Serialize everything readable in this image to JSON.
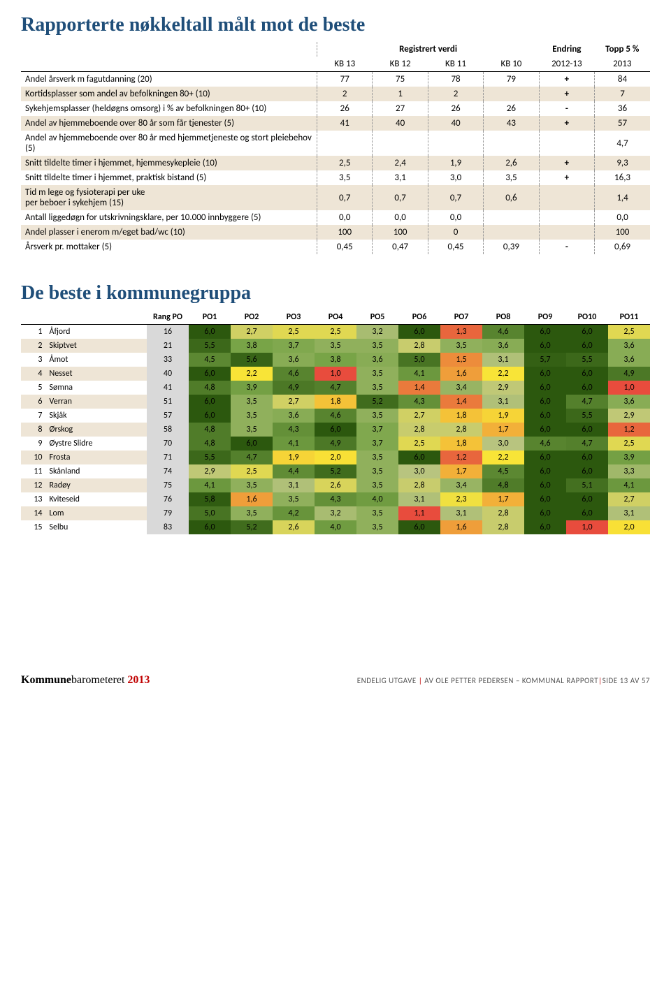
{
  "title1": "Rapporterte nøkkeltall målt mot de beste",
  "title2": "De beste i kommunegruppa",
  "table1": {
    "header_group_registrert": "Registrert verdi",
    "header_endring": "Endring",
    "header_topp": "Topp 5 %",
    "header_kb13": "KB 13",
    "header_kb12": "KB 12",
    "header_kb11": "KB 11",
    "header_kb10": "KB 10",
    "header_2012_13": "2012-13",
    "header_2013": "2013",
    "rows": [
      {
        "label": "Andel årsverk m fagutdanning (20)",
        "kb13": "77",
        "kb12": "75",
        "kb11": "78",
        "kb10": "79",
        "e": "+",
        "t": "84"
      },
      {
        "label": "Kortidsplasser som andel av befolkningen 80+ (10)",
        "kb13": "2",
        "kb12": "1",
        "kb11": "2",
        "kb10": "",
        "e": "+",
        "t": "7"
      },
      {
        "label": "Sykehjemsplasser (heldøgns omsorg) i % av befolkningen 80+ (10)",
        "kb13": "26",
        "kb12": "27",
        "kb11": "26",
        "kb10": "26",
        "e": "-",
        "t": "36"
      },
      {
        "label": "Andel av hjemmeboende over 80 år som får tjenester (5)",
        "kb13": "41",
        "kb12": "40",
        "kb11": "40",
        "kb10": "43",
        "e": "+",
        "t": "57"
      },
      {
        "label": "Andel av hjemmeboende over 80 år med hjemmetjeneste og stort pleiebehov (5)",
        "kb13": "",
        "kb12": "",
        "kb11": "",
        "kb10": "",
        "e": "",
        "t": "4,7"
      },
      {
        "label": "Snitt tildelte timer i hjemmet, hjemmesykepleie (10)",
        "kb13": "2,5",
        "kb12": "2,4",
        "kb11": "1,9",
        "kb10": "2,6",
        "e": "+",
        "t": "9,3"
      },
      {
        "label": "Snitt tildelte timer i hjemmet, praktisk bistand (5)",
        "kb13": "3,5",
        "kb12": "3,1",
        "kb11": "3,0",
        "kb10": "3,5",
        "e": "+",
        "t": "16,3"
      },
      {
        "label": "Tid m lege og fysioterapi per uke\nper beboer i sykehjem (15)",
        "kb13": "0,7",
        "kb12": "0,7",
        "kb11": "0,7",
        "kb10": "0,6",
        "e": "",
        "t": "1,4"
      },
      {
        "label": "Antall liggedøgn for utskrivningsklare, per 10.000 innbyggere (5)",
        "kb13": "0,0",
        "kb12": "0,0",
        "kb11": "0,0",
        "kb10": "",
        "e": "",
        "t": "0,0"
      },
      {
        "label": "Andel plasser i enerom m/eget bad/wc (10)",
        "kb13": "100",
        "kb12": "100",
        "kb11": "0",
        "kb10": "",
        "e": "",
        "t": "100"
      },
      {
        "label": "Årsverk pr. mottaker (5)",
        "kb13": "0,45",
        "kb12": "0,47",
        "kb11": "0,45",
        "kb10": "0,39",
        "e": "-",
        "t": "0,69"
      }
    ]
  },
  "table2": {
    "header_rang": "Rang PO",
    "po_headers": [
      "PO1",
      "PO2",
      "PO3",
      "PO4",
      "PO5",
      "PO6",
      "PO7",
      "PO8",
      "PO9",
      "PO10",
      "PO11"
    ],
    "color_scale": {
      "1.0": "#e84c3d",
      "1.1": "#e84c3d",
      "1.2": "#e8663d",
      "1.3": "#e8663d",
      "1.4": "#ea7a3c",
      "1.5": "#ed8c3b",
      "1.6": "#ef9e3a",
      "1.7": "#f2b039",
      "1.8": "#f4c238",
      "1.9": "#f6d437",
      "2.0": "#f8e036",
      "2.2": "#f8e437",
      "2.3": "#f0e040",
      "2.4": "#e8dc49",
      "2.5": "#e0d852",
      "2.6": "#d8d45b",
      "2.7": "#d0d064",
      "2.8": "#c8cc6d",
      "2.9": "#c0c876",
      "3.0": "#b8c47f",
      "3.1": "#b0c078",
      "3.2": "#a8bc71",
      "3.3": "#a0b86a",
      "3.4": "#98b463",
      "3.5": "#90b05c",
      "3.6": "#88ac55",
      "3.7": "#80a84e",
      "3.8": "#78a447",
      "3.9": "#74a044",
      "4.0": "#709c41",
      "4.1": "#6c983e",
      "4.2": "#68943b",
      "4.3": "#649038",
      "4.4": "#608c35",
      "4.5": "#5c8832",
      "4.6": "#58842f",
      "4.7": "#54802c",
      "4.8": "#507c29",
      "4.9": "#4c7826",
      "5.0": "#487423",
      "5.1": "#447020",
      "5.2": "#406c1d",
      "5.5": "#3c681a",
      "5.6": "#386417",
      "5.7": "#346014",
      "5.8": "#305c11",
      "6.0": "#2c580e"
    },
    "rows": [
      {
        "rank": "1",
        "name": "Åfjord",
        "rang": "16",
        "po": [
          "6,0",
          "2,7",
          "2,5",
          "2,5",
          "3,2",
          "6,0",
          "1,3",
          "4,6",
          "6,0",
          "6,0",
          "2,5"
        ]
      },
      {
        "rank": "2",
        "name": "Skiptvet",
        "rang": "21",
        "po": [
          "5,5",
          "3,8",
          "3,7",
          "3,5",
          "3,5",
          "2,8",
          "3,5",
          "3,6",
          "6,0",
          "6,0",
          "3,6"
        ]
      },
      {
        "rank": "3",
        "name": "Åmot",
        "rang": "33",
        "po": [
          "4,5",
          "5,6",
          "3,6",
          "3,8",
          "3,6",
          "5,0",
          "1,5",
          "3,1",
          "5,7",
          "5,5",
          "3,6"
        ]
      },
      {
        "rank": "4",
        "name": "Nesset",
        "rang": "40",
        "po": [
          "6,0",
          "2,2",
          "4,6",
          "1,0",
          "3,5",
          "4,1",
          "1,6",
          "2,2",
          "6,0",
          "6,0",
          "4,9"
        ]
      },
      {
        "rank": "5",
        "name": "Sømna",
        "rang": "41",
        "po": [
          "4,8",
          "3,9",
          "4,9",
          "4,7",
          "3,5",
          "1,4",
          "3,4",
          "2,9",
          "6,0",
          "6,0",
          "1,0"
        ]
      },
      {
        "rank": "6",
        "name": "Verran",
        "rang": "51",
        "po": [
          "6,0",
          "3,5",
          "2,7",
          "1,8",
          "5,2",
          "4,3",
          "1,4",
          "3,1",
          "6,0",
          "4,7",
          "3,6"
        ]
      },
      {
        "rank": "7",
        "name": "Skjåk",
        "rang": "57",
        "po": [
          "6,0",
          "3,5",
          "3,6",
          "4,6",
          "3,5",
          "2,7",
          "1,8",
          "1,9",
          "6,0",
          "5,5",
          "2,9"
        ]
      },
      {
        "rank": "8",
        "name": "Ørskog",
        "rang": "58",
        "po": [
          "4,8",
          "3,5",
          "4,3",
          "6,0",
          "3,7",
          "2,8",
          "2,8",
          "1,7",
          "6,0",
          "6,0",
          "1,2"
        ]
      },
      {
        "rank": "9",
        "name": "Øystre Slidre",
        "rang": "70",
        "po": [
          "4,8",
          "6,0",
          "4,1",
          "4,9",
          "3,7",
          "2,5",
          "1,8",
          "3,0",
          "4,6",
          "4,7",
          "2,5"
        ]
      },
      {
        "rank": "10",
        "name": "Frosta",
        "rang": "71",
        "po": [
          "5,5",
          "4,7",
          "1,9",
          "2,0",
          "3,5",
          "6,0",
          "1,2",
          "2,2",
          "6,0",
          "6,0",
          "3,9"
        ]
      },
      {
        "rank": "11",
        "name": "Skånland",
        "rang": "74",
        "po": [
          "2,9",
          "2,5",
          "4,4",
          "5,2",
          "3,5",
          "3,0",
          "1,7",
          "4,5",
          "6,0",
          "6,0",
          "3,3"
        ]
      },
      {
        "rank": "12",
        "name": "Radøy",
        "rang": "75",
        "po": [
          "4,1",
          "3,5",
          "3,1",
          "2,6",
          "3,5",
          "2,8",
          "3,4",
          "4,8",
          "6,0",
          "5,1",
          "4,1"
        ]
      },
      {
        "rank": "13",
        "name": "Kviteseid",
        "rang": "76",
        "po": [
          "5,8",
          "1,6",
          "3,5",
          "4,3",
          "4,0",
          "3,1",
          "2,3",
          "1,7",
          "6,0",
          "6,0",
          "2,7"
        ]
      },
      {
        "rank": "14",
        "name": "Lom",
        "rang": "79",
        "po": [
          "5,0",
          "3,5",
          "4,2",
          "3,2",
          "3,5",
          "1,1",
          "3,1",
          "2,8",
          "6,0",
          "6,0",
          "3,1"
        ]
      },
      {
        "rank": "15",
        "name": "Selbu",
        "rang": "83",
        "po": [
          "6,0",
          "5,2",
          "2,6",
          "4,0",
          "3,5",
          "6,0",
          "1,6",
          "2,8",
          "6,0",
          "1,0",
          "2,0"
        ]
      }
    ]
  },
  "footer": {
    "brand_k": "Kommune",
    "brand_rest": "barometeret",
    "brand_year": "2013",
    "right_prefix": "ENDELIG UTGAVE ",
    "right_mid": " AV OLE PETTER PEDERSEN – KOMMUNAL RAPPORT",
    "right_page": "SIDE 13 AV 57"
  }
}
